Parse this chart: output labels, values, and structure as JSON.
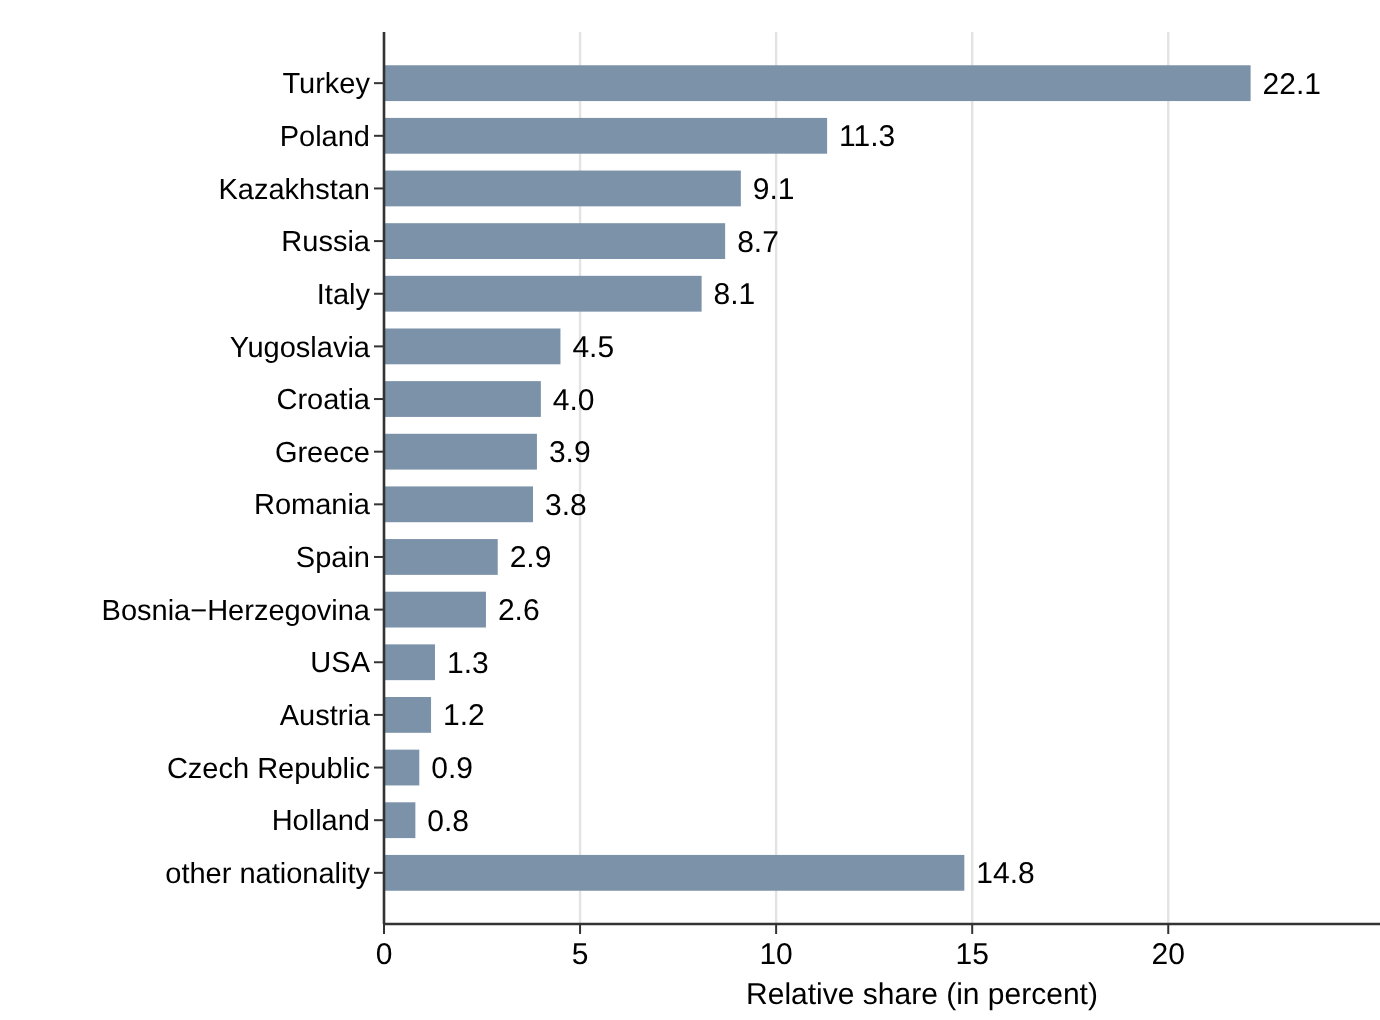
{
  "chart_data": {
    "type": "bar",
    "orientation": "horizontal",
    "xlabel": "Relative share (in percent)",
    "categories": [
      "Turkey",
      "Poland",
      "Kazakhstan",
      "Russia",
      "Italy",
      "Yugoslavia",
      "Croatia",
      "Greece",
      "Romania",
      "Spain",
      "Bosnia−Herzegovina",
      "USA",
      "Austria",
      "Czech Republic",
      "Holland",
      "other nationality"
    ],
    "values": [
      22.1,
      11.3,
      9.1,
      8.7,
      8.1,
      4.5,
      4.0,
      3.9,
      3.8,
      2.9,
      2.6,
      1.3,
      1.2,
      0.9,
      0.8,
      14.8
    ],
    "value_labels": [
      "22.1",
      "11.3",
      "9.1",
      "8.7",
      "8.1",
      "4.5",
      "4.0",
      "3.9",
      "3.8",
      "2.9",
      "2.6",
      "1.3",
      "1.2",
      "0.9",
      "0.8",
      "14.8"
    ],
    "color": "#7b92a9",
    "xlim": [
      0,
      25.4
    ],
    "xticks": [
      0,
      5,
      10,
      15,
      20
    ],
    "grid": "x"
  }
}
